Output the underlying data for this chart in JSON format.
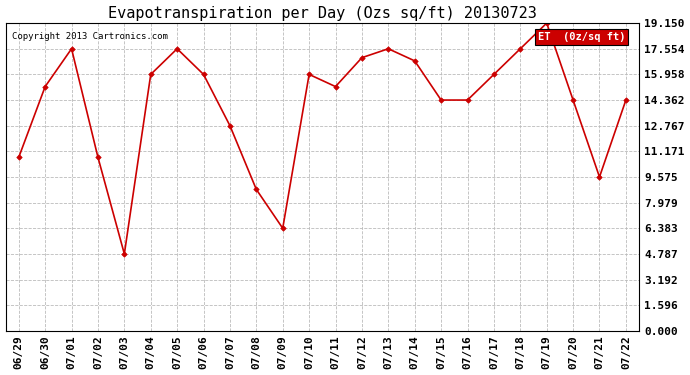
{
  "title": "Evapotranspiration per Day (Ozs sq/ft) 20130723",
  "copyright": "Copyright 2013 Cartronics.com",
  "legend_label": "ET  (0z/sq ft)",
  "x_labels": [
    "06/29",
    "06/30",
    "07/01",
    "07/02",
    "07/03",
    "07/04",
    "07/05",
    "07/06",
    "07/07",
    "07/08",
    "07/09",
    "07/10",
    "07/11",
    "07/12",
    "07/13",
    "07/14",
    "07/15",
    "07/16",
    "07/17",
    "07/18",
    "07/19",
    "07/20",
    "07/21",
    "07/22"
  ],
  "y_values": [
    10.8,
    15.2,
    17.554,
    10.8,
    4.787,
    15.958,
    17.554,
    15.958,
    12.767,
    8.8,
    6.383,
    15.958,
    15.2,
    17.0,
    17.554,
    16.8,
    14.362,
    14.362,
    15.958,
    17.554,
    19.15,
    14.362,
    9.575,
    14.362
  ],
  "y_ticks": [
    0.0,
    1.596,
    3.192,
    4.787,
    6.383,
    7.979,
    9.575,
    11.171,
    12.767,
    14.362,
    15.958,
    17.554,
    19.15
  ],
  "line_color": "#cc0000",
  "marker_color": "#cc0000",
  "bg_color": "#ffffff",
  "grid_color": "#bbbbbb",
  "title_fontsize": 11,
  "copyright_fontsize": 6.5,
  "tick_fontsize": 8,
  "legend_bg": "#cc0000",
  "legend_text_color": "#ffffff",
  "ylim": [
    0.0,
    19.15
  ]
}
